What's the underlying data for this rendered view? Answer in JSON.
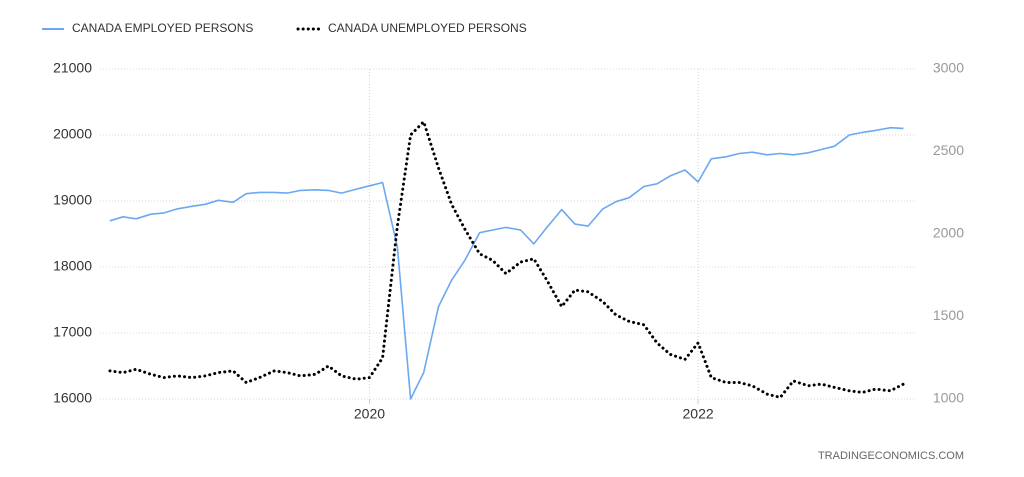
{
  "chart_data": {
    "type": "line",
    "source": "TRADINGECONOMICS.COM",
    "x": [
      2018.42,
      2018.5,
      2018.58,
      2018.67,
      2018.75,
      2018.83,
      2018.92,
      2019.0,
      2019.08,
      2019.17,
      2019.25,
      2019.33,
      2019.42,
      2019.5,
      2019.58,
      2019.67,
      2019.75,
      2019.83,
      2019.92,
      2020.0,
      2020.08,
      2020.17,
      2020.25,
      2020.33,
      2020.42,
      2020.5,
      2020.58,
      2020.67,
      2020.75,
      2020.83,
      2020.92,
      2021.0,
      2021.08,
      2021.17,
      2021.25,
      2021.33,
      2021.42,
      2021.5,
      2021.58,
      2021.67,
      2021.75,
      2021.83,
      2021.92,
      2022.0,
      2022.08,
      2022.17,
      2022.25,
      2022.33,
      2022.42,
      2022.5,
      2022.58,
      2022.67,
      2022.75,
      2022.83,
      2022.92,
      2023.0,
      2023.08,
      2023.17,
      2023.25
    ],
    "series": [
      {
        "name": "CANADA EMPLOYED PERSONS",
        "color": "#6aa9ef",
        "axis": "y",
        "style": "solid",
        "values": [
          18700,
          18760,
          18730,
          18800,
          18820,
          18880,
          18920,
          18950,
          19010,
          18980,
          19110,
          19130,
          19130,
          19120,
          19160,
          19170,
          19160,
          19120,
          19180,
          19230,
          19280,
          18300,
          16000,
          16400,
          17400,
          17800,
          18100,
          18520,
          18560,
          18600,
          18560,
          18350,
          18600,
          18870,
          18650,
          18620,
          18880,
          18990,
          19050,
          19220,
          19260,
          19380,
          19470,
          19290,
          19640,
          19670,
          19720,
          19740,
          19700,
          19720,
          19700,
          19730,
          19780,
          19830,
          20000,
          20040,
          20070,
          20110,
          20100
        ]
      },
      {
        "name": "CANADA UNEMPLOYED PERSONS",
        "color": "#000000",
        "axis": "y2",
        "style": "dotted",
        "values": [
          1170,
          1160,
          1180,
          1150,
          1130,
          1140,
          1130,
          1140,
          1160,
          1170,
          1100,
          1130,
          1170,
          1160,
          1140,
          1150,
          1200,
          1140,
          1120,
          1130,
          1250,
          2050,
          2600,
          2680,
          2400,
          2180,
          2030,
          1880,
          1840,
          1760,
          1830,
          1850,
          1720,
          1560,
          1660,
          1650,
          1590,
          1510,
          1470,
          1450,
          1340,
          1270,
          1240,
          1340,
          1130,
          1100,
          1100,
          1080,
          1030,
          1010,
          1110,
          1080,
          1090,
          1070,
          1050,
          1040,
          1060,
          1050,
          1090
        ]
      }
    ],
    "xlim": [
      2018.36,
      2023.32
    ],
    "xticks": [
      2020,
      2022
    ],
    "ylim": [
      16000,
      21000
    ],
    "yticks": [
      16000,
      17000,
      18000,
      19000,
      20000,
      21000
    ],
    "y2lim": [
      1000,
      3000
    ],
    "y2ticks": [
      1000,
      1500,
      2000,
      2500,
      3000
    ],
    "grid": true,
    "legend": "top-left"
  }
}
